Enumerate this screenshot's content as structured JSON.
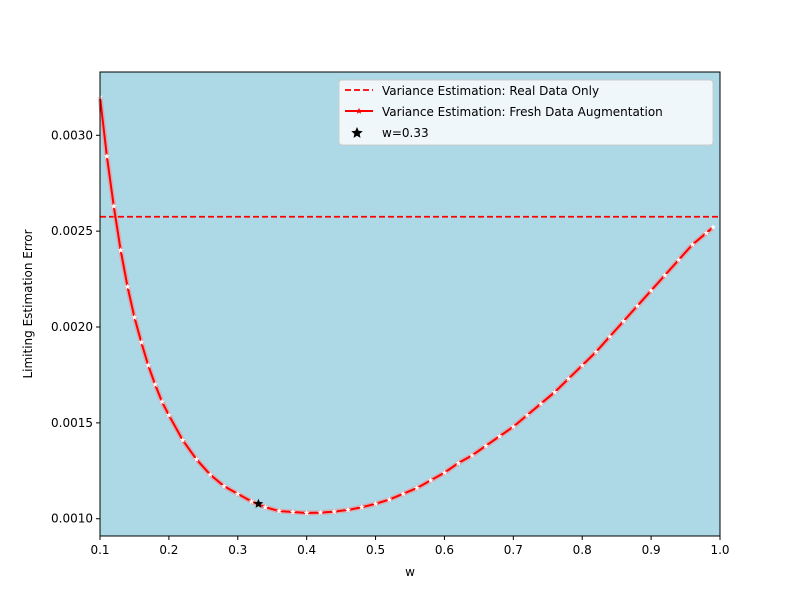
{
  "chart_data": {
    "type": "line",
    "title": "",
    "xlabel": "w",
    "ylabel": "Limiting Estimation Error",
    "xlim": [
      0.1,
      1.0
    ],
    "ylim": [
      0.00091,
      0.00333
    ],
    "xticks": [
      0.1,
      0.2,
      0.3,
      0.4,
      0.5,
      0.6,
      0.7,
      0.8,
      0.9,
      1.0
    ],
    "xtick_labels": [
      "0.1",
      "0.2",
      "0.3",
      "0.4",
      "0.5",
      "0.6",
      "0.7",
      "0.8",
      "0.9",
      "1.0"
    ],
    "yticks": [
      0.001,
      0.0015,
      0.002,
      0.0025,
      0.003
    ],
    "ytick_labels": [
      "0.0010",
      "0.0015",
      "0.0020",
      "0.0025",
      "0.0030"
    ],
    "grid": false,
    "legend_position": "top-right",
    "plot_background": "#add8e6",
    "series": [
      {
        "name": "Variance Estimation: Real Data Only",
        "style": "dashed",
        "color": "#ff0000",
        "x": [
          0.1,
          1.0
        ],
        "y": [
          0.002575,
          0.002575
        ]
      },
      {
        "name": "Variance Estimation: Fresh Data Augmentation",
        "style": "solid-with-markers",
        "color": "#ff0000",
        "x": [
          0.1,
          0.11,
          0.12,
          0.13,
          0.14,
          0.15,
          0.16,
          0.17,
          0.18,
          0.19,
          0.2,
          0.22,
          0.24,
          0.26,
          0.28,
          0.3,
          0.32,
          0.34,
          0.36,
          0.38,
          0.4,
          0.42,
          0.44,
          0.46,
          0.48,
          0.5,
          0.52,
          0.54,
          0.56,
          0.58,
          0.6,
          0.62,
          0.64,
          0.66,
          0.68,
          0.7,
          0.72,
          0.74,
          0.76,
          0.78,
          0.8,
          0.82,
          0.84,
          0.86,
          0.88,
          0.9,
          0.92,
          0.94,
          0.96,
          0.98,
          0.99
        ],
        "y": [
          0.0032,
          0.00289,
          0.00263,
          0.0024,
          0.00221,
          0.00205,
          0.00192,
          0.0018,
          0.0017,
          0.00161,
          0.00154,
          0.00141,
          0.00131,
          0.00123,
          0.00117,
          0.00113,
          0.00109,
          0.00106,
          0.00104,
          0.001035,
          0.00103,
          0.001032,
          0.001037,
          0.001046,
          0.00106,
          0.001078,
          0.0011,
          0.00113,
          0.00116,
          0.0012,
          0.00124,
          0.00129,
          0.00133,
          0.00138,
          0.00143,
          0.00148,
          0.00154,
          0.0016,
          0.00166,
          0.00173,
          0.0018,
          0.00187,
          0.00195,
          0.00203,
          0.00211,
          0.00219,
          0.00227,
          0.00235,
          0.00243,
          0.00249,
          0.00252
        ]
      },
      {
        "name": "w=0.33",
        "style": "star-marker",
        "color": "#000000",
        "x": [
          0.33
        ],
        "y": [
          0.001078
        ]
      }
    ]
  }
}
